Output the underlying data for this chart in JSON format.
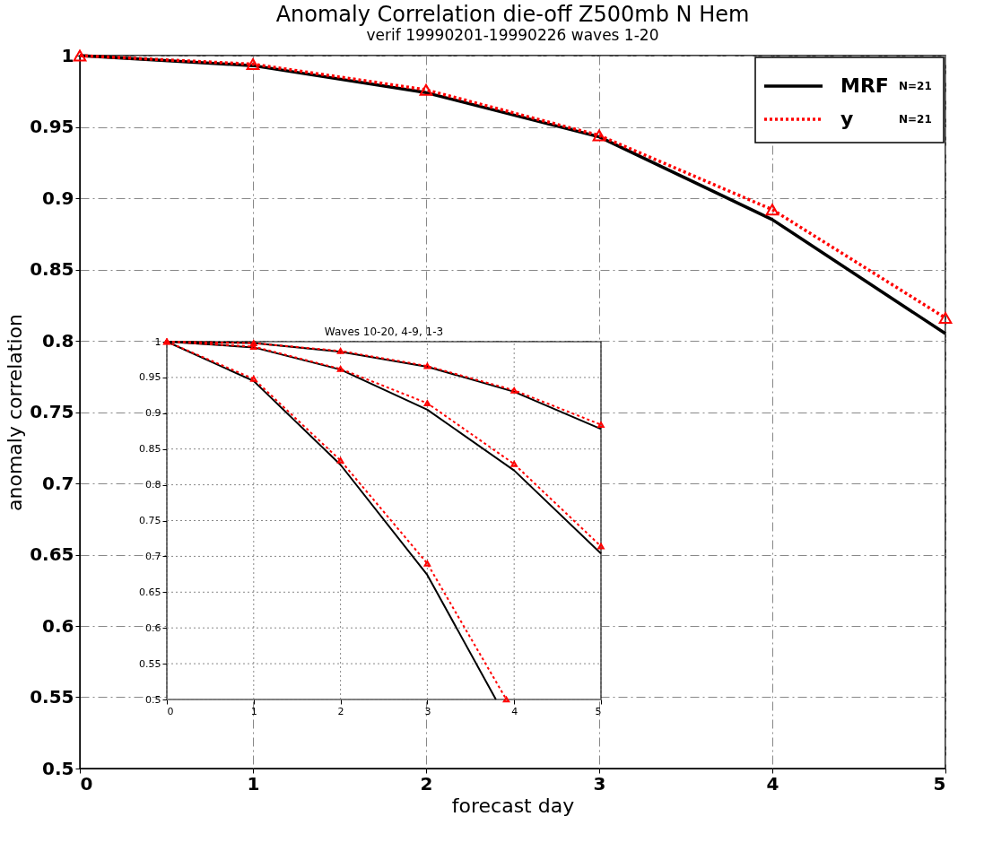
{
  "chart_data": [
    {
      "type": "line",
      "title": "Anomaly Correlation die-off  Z500mb N Hem",
      "subtitle": "verif 19990201-19990226 waves 1-20",
      "xlabel": "forecast day",
      "ylabel": "anomaly correlation",
      "x": [
        0,
        1,
        2,
        3,
        4,
        5
      ],
      "series": [
        {
          "name": "MRF",
          "color": "#000000",
          "values": [
            1,
            0.993,
            0.974,
            0.943,
            0.885,
            0.805
          ],
          "marker": "none",
          "line_style": "solid"
        },
        {
          "name": "y",
          "color": "#ff0000",
          "values": [
            1,
            0.994,
            0.976,
            0.944,
            0.892,
            0.816
          ],
          "marker": "triangle",
          "line_style": "dotted"
        }
      ],
      "xlim": [
        0,
        5
      ],
      "ylim": [
        0.5,
        1
      ],
      "xticks": [
        0,
        1,
        2,
        3,
        4,
        5
      ],
      "yticks": [
        0.5,
        0.55,
        0.6,
        0.65,
        0.7,
        0.75,
        0.8,
        0.85,
        0.9,
        0.95,
        1
      ],
      "grid": true,
      "legend": "top right",
      "annotations": [
        "N=21",
        "N=21"
      ]
    },
    {
      "type": "line",
      "title": "Waves 10-20, 4-9, 1-3",
      "x": [
        0,
        1,
        2,
        3,
        4,
        5
      ],
      "series": [
        {
          "color": "#000000",
          "x": [
            0,
            1,
            2,
            3,
            3.79
          ],
          "values": [
            1,
            0.945,
            0.828,
            0.674,
            0.5
          ],
          "marker": "none",
          "line_style": "solid"
        },
        {
          "color": "#ff0000",
          "x": [
            0,
            1,
            2,
            3,
            3.91
          ],
          "values": [
            1,
            0.948,
            0.834,
            0.69,
            0.5
          ],
          "marker": "triangle",
          "line_style": "dotted"
        },
        {
          "color": "#000000",
          "values": [
            1,
            0.992,
            0.961,
            0.905,
            0.82,
            0.704
          ],
          "marker": "none",
          "line_style": "solid"
        },
        {
          "color": "#ff0000",
          "values": [
            1,
            0.993,
            0.962,
            0.914,
            0.829,
            0.714
          ],
          "marker": "triangle",
          "line_style": "dotted"
        },
        {
          "color": "#000000",
          "values": [
            1,
            0.998,
            0.986,
            0.965,
            0.93,
            0.878
          ],
          "marker": "none",
          "line_style": "solid"
        },
        {
          "color": "#ff0000",
          "values": [
            1,
            0.998,
            0.987,
            0.966,
            0.932,
            0.884
          ],
          "marker": "triangle",
          "line_style": "dotted"
        }
      ],
      "xlim": [
        0,
        5
      ],
      "ylim": [
        0.5,
        1
      ],
      "xticks": [
        0,
        1,
        2,
        3,
        4,
        5
      ],
      "yticks": [
        0.5,
        0.55,
        0.6,
        0.65,
        0.7,
        0.75,
        0.8,
        0.85,
        0.9,
        0.95,
        1
      ],
      "grid": true
    }
  ]
}
